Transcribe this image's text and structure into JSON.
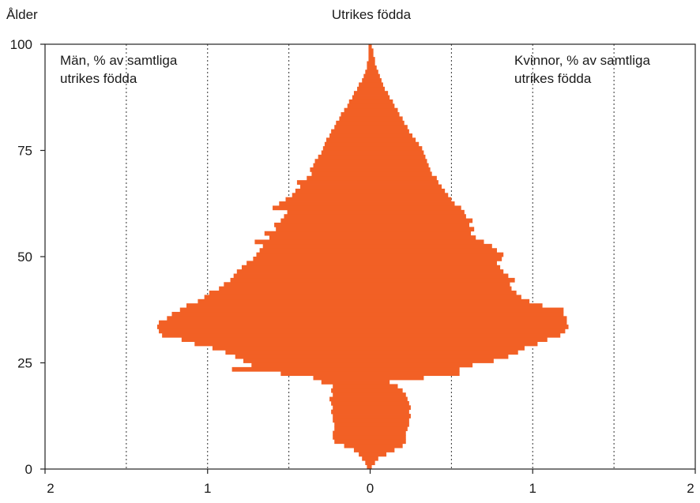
{
  "chart_data": {
    "type": "bar",
    "orientation": "horizontal",
    "layout": "population-pyramid",
    "title": "Utrikes födda",
    "ylabel": "Ålder",
    "left_label": [
      "Män, % av samtliga",
      "utrikes födda"
    ],
    "right_label": [
      "Kvinnor, % av samtliga",
      "utrikes födda"
    ],
    "x_ticks": [
      {
        "value": -2,
        "label": "2"
      },
      {
        "value": -1,
        "label": "1"
      },
      {
        "value": 0,
        "label": "0"
      },
      {
        "value": 1,
        "label": "1"
      },
      {
        "value": 2,
        "label": "2"
      }
    ],
    "y_ticks": [
      0,
      25,
      50,
      75,
      100
    ],
    "xlim": [
      -2,
      2
    ],
    "ylim": [
      0,
      100
    ],
    "grid": {
      "vertical": [
        -1.5,
        -1,
        -0.5,
        0.5,
        1,
        1.5
      ],
      "style": "dotted"
    },
    "bar_color": "#f26025",
    "ages": [
      0,
      1,
      2,
      3,
      4,
      5,
      6,
      7,
      8,
      9,
      10,
      11,
      12,
      13,
      14,
      15,
      16,
      17,
      18,
      19,
      20,
      21,
      22,
      23,
      24,
      25,
      26,
      27,
      28,
      29,
      30,
      31,
      32,
      33,
      34,
      35,
      36,
      37,
      38,
      39,
      40,
      41,
      42,
      43,
      44,
      45,
      46,
      47,
      48,
      49,
      50,
      51,
      52,
      53,
      54,
      55,
      56,
      57,
      58,
      59,
      60,
      61,
      62,
      63,
      64,
      65,
      66,
      67,
      68,
      69,
      70,
      71,
      72,
      73,
      74,
      75,
      76,
      77,
      78,
      79,
      80,
      81,
      82,
      83,
      84,
      85,
      86,
      87,
      88,
      89,
      90,
      91,
      92,
      93,
      94,
      95,
      96,
      97,
      98,
      99
    ],
    "series": [
      {
        "name": "Män, % av samtliga utrikes födda",
        "side": "left",
        "values": [
          0.02,
          0.03,
          0.05,
          0.07,
          0.1,
          0.16,
          0.22,
          0.23,
          0.23,
          0.22,
          0.22,
          0.23,
          0.23,
          0.24,
          0.23,
          0.24,
          0.25,
          0.23,
          0.24,
          0.23,
          0.3,
          0.35,
          0.55,
          0.85,
          0.73,
          0.78,
          0.83,
          0.89,
          0.97,
          1.08,
          1.16,
          1.28,
          1.3,
          1.31,
          1.3,
          1.25,
          1.22,
          1.17,
          1.13,
          1.06,
          1.02,
          0.99,
          0.93,
          0.9,
          0.86,
          0.84,
          0.82,
          0.79,
          0.76,
          0.72,
          0.7,
          0.68,
          0.66,
          0.71,
          0.62,
          0.65,
          0.58,
          0.59,
          0.55,
          0.53,
          0.51,
          0.6,
          0.56,
          0.52,
          0.48,
          0.46,
          0.43,
          0.45,
          0.39,
          0.36,
          0.37,
          0.35,
          0.34,
          0.32,
          0.3,
          0.29,
          0.28,
          0.27,
          0.25,
          0.24,
          0.22,
          0.21,
          0.19,
          0.18,
          0.16,
          0.14,
          0.13,
          0.11,
          0.1,
          0.08,
          0.07,
          0.05,
          0.04,
          0.03,
          0.02,
          0.02,
          0.01,
          0.01,
          0.01,
          0.01
        ]
      },
      {
        "name": "Kvinnor, % av samtliga utrikes födda",
        "side": "right",
        "values": [
          0.01,
          0.03,
          0.05,
          0.1,
          0.15,
          0.2,
          0.22,
          0.22,
          0.22,
          0.23,
          0.24,
          0.24,
          0.25,
          0.24,
          0.25,
          0.24,
          0.23,
          0.22,
          0.2,
          0.17,
          0.12,
          0.33,
          0.55,
          0.55,
          0.63,
          0.76,
          0.85,
          0.91,
          0.95,
          1.03,
          1.09,
          1.17,
          1.2,
          1.22,
          1.21,
          1.21,
          1.19,
          1.19,
          1.06,
          0.98,
          0.93,
          0.9,
          0.87,
          0.86,
          0.89,
          0.85,
          0.82,
          0.8,
          0.78,
          0.81,
          0.82,
          0.78,
          0.75,
          0.7,
          0.65,
          0.62,
          0.64,
          0.61,
          0.63,
          0.59,
          0.58,
          0.56,
          0.52,
          0.5,
          0.48,
          0.46,
          0.44,
          0.42,
          0.41,
          0.38,
          0.37,
          0.36,
          0.35,
          0.34,
          0.33,
          0.32,
          0.3,
          0.28,
          0.26,
          0.24,
          0.23,
          0.21,
          0.2,
          0.18,
          0.17,
          0.15,
          0.14,
          0.12,
          0.11,
          0.09,
          0.08,
          0.07,
          0.06,
          0.05,
          0.04,
          0.03,
          0.03,
          0.02,
          0.02,
          0.01
        ]
      }
    ]
  }
}
